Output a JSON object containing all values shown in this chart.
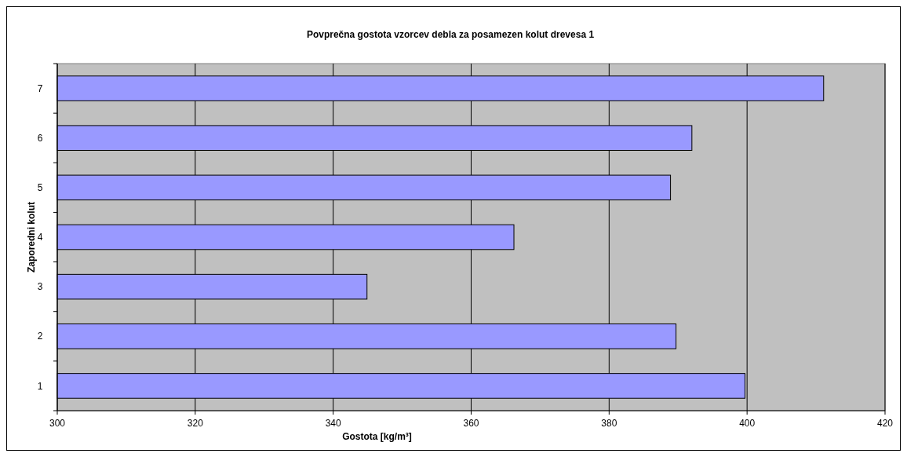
{
  "chart_data": {
    "type": "bar",
    "orientation": "horizontal",
    "title": "Povprečna gostota vzorcev debla za posamezen kolut drevesa 1",
    "xlabel": "Gostota [kg/m³]",
    "ylabel": "Zaporedni kolut",
    "categories": [
      "7",
      "6",
      "5",
      "4",
      "3",
      "2",
      "1"
    ],
    "values": [
      411.1,
      392.0,
      388.9,
      366.2,
      344.9,
      389.7,
      399.7
    ],
    "color": "#9999ff",
    "xlim": [
      300,
      420
    ],
    "xticks": [
      300,
      320,
      340,
      360,
      380,
      400,
      420
    ],
    "grid": "x"
  }
}
